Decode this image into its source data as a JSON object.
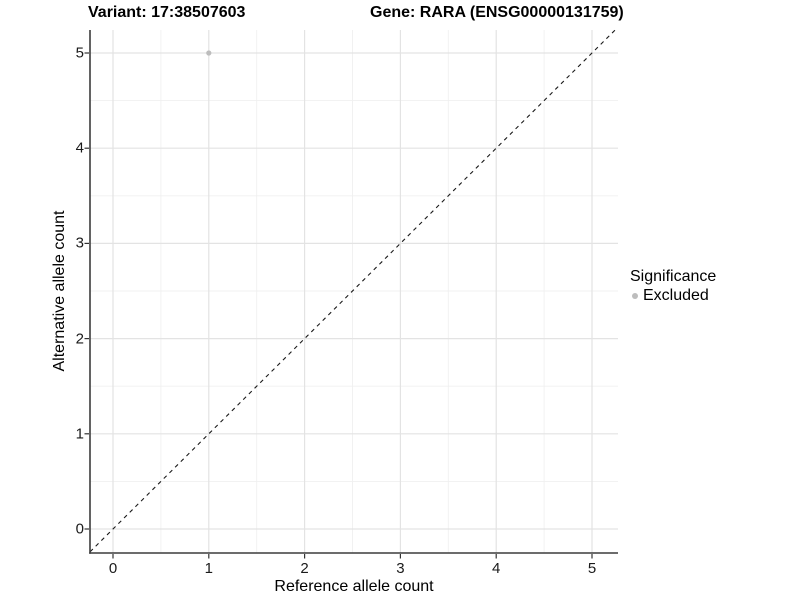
{
  "chart_data": {
    "type": "scatter",
    "titles": {
      "variant": "Variant: 17:38507603",
      "gene": "Gene: RARA (ENSG00000131759)"
    },
    "xlabel": "Reference allele count",
    "ylabel": "Alternative allele count",
    "x_ticks": [
      "0",
      "1",
      "2",
      "3",
      "4",
      "5"
    ],
    "y_ticks": [
      "0",
      "1",
      "2",
      "3",
      "4",
      "5"
    ],
    "x_tick_values": [
      0,
      1,
      2,
      3,
      4,
      5
    ],
    "y_tick_values": [
      0,
      1,
      2,
      3,
      4,
      5
    ],
    "minor_tick_values": [
      0.5,
      1.5,
      2.5,
      3.5,
      4.5
    ],
    "xlim": [
      -0.24,
      5.27
    ],
    "ylim": [
      -0.25,
      5.24
    ],
    "grid": "on",
    "points": [
      {
        "x": 1,
        "y": 5,
        "series": "Excluded"
      }
    ],
    "identity_line": {
      "slope": 1,
      "intercept": 0,
      "style": "dashed"
    },
    "legend": {
      "title": "Significance",
      "position": "right",
      "items": [
        {
          "label": "Excluded",
          "color": "#bdbdbd"
        }
      ]
    },
    "colors": {
      "point": "#bdbdbd",
      "identity_line": "#1a1a1a",
      "major_grid": "#e3e3e3",
      "minor_grid": "#f0f0f0",
      "axis_line": "#3c3c3c",
      "tick_mark": "#333333",
      "background": "#ffffff"
    }
  }
}
